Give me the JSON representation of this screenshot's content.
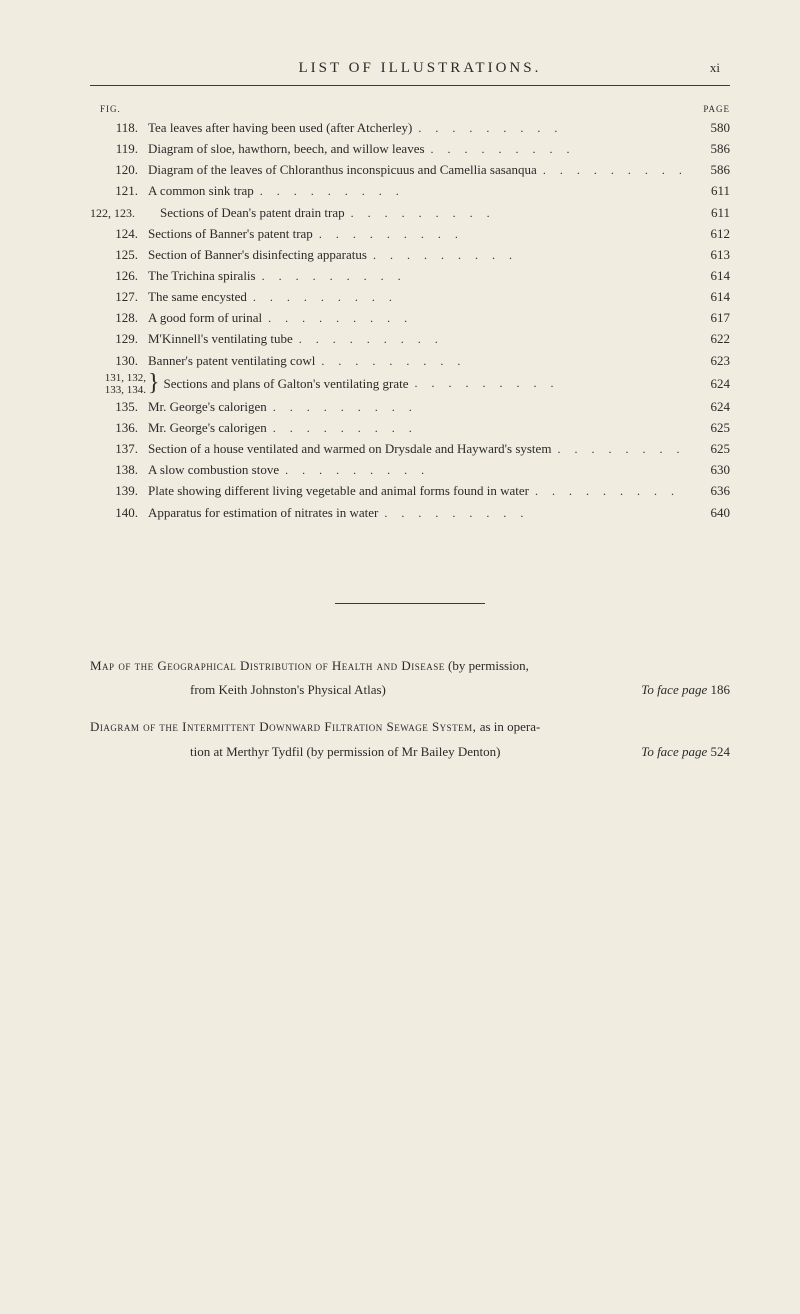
{
  "header": {
    "title": "LIST OF ILLUSTRATIONS.",
    "page_number": "xi"
  },
  "labels": {
    "fig": "FIG.",
    "page": "PAGE"
  },
  "entries": [
    {
      "num": "118.",
      "text": "Tea leaves after having been used (after Atcherley)",
      "page": "580"
    },
    {
      "num": "119.",
      "text": "Diagram of sloe, hawthorn, beech, and willow leaves",
      "page": "586"
    },
    {
      "num": "120.",
      "text": "Diagram of the leaves of Chloranthus inconspicuus and Camellia sasanqua",
      "page": "586"
    },
    {
      "num": "121.",
      "text": "A common sink trap",
      "page": "611"
    },
    {
      "num": "122, 123.",
      "text": "Sections of Dean's patent drain trap",
      "page": "611",
      "wide": true
    },
    {
      "num": "124.",
      "text": "Sections of Banner's patent trap",
      "page": "612"
    },
    {
      "num": "125.",
      "text": "Section of Banner's disinfecting apparatus",
      "page": "613"
    },
    {
      "num": "126.",
      "text": "The Trichina spiralis",
      "page": "614"
    },
    {
      "num": "127.",
      "text": "The same encysted",
      "page": "614"
    },
    {
      "num": "128.",
      "text": "A good form of urinal",
      "page": "617"
    },
    {
      "num": "129.",
      "text": "M'Kinnell's ventilating tube",
      "page": "622"
    },
    {
      "num": "130.",
      "text": "Banner's patent ventilating cowl",
      "page": "623"
    }
  ],
  "brace_entry": {
    "nums_line1": "131, 132,",
    "nums_line2": "133, 134.",
    "text": "Sections and plans of Galton's ventilating grate",
    "page": "624"
  },
  "entries2": [
    {
      "num": "135.",
      "text": "Mr. George's calorigen",
      "page": "624"
    },
    {
      "num": "136.",
      "text": "Mr. George's calorigen",
      "page": "625"
    },
    {
      "num": "137.",
      "text": "Section of a house ventilated and warmed on Drysdale and Hayward's system",
      "page": "625"
    },
    {
      "num": "138.",
      "text": "A slow combustion stove",
      "page": "630"
    },
    {
      "num": "139.",
      "text": "Plate showing different living vegetable and animal forms found in water",
      "page": "636"
    },
    {
      "num": "140.",
      "text": "Apparatus for estimation of nitrates in water",
      "page": "640"
    }
  ],
  "footer": {
    "line1a": "Map of the Geographical Distribution of Health and Disease",
    "line1b": " (by permission,",
    "line2_left": "from Keith Johnston's Physical Atlas)",
    "line2_right_italic": "To face page",
    "line2_right_num": " 186",
    "line3a": "Diagram of the Intermittent Downward Filtration Sewage System,",
    "line3b": " as in opera-",
    "line4_left": "tion at Merthyr Tydfil (by permission of Mr Bailey Denton)",
    "line4_right_italic": "To face page",
    "line4_right_num": " 524"
  },
  "dots": "........."
}
